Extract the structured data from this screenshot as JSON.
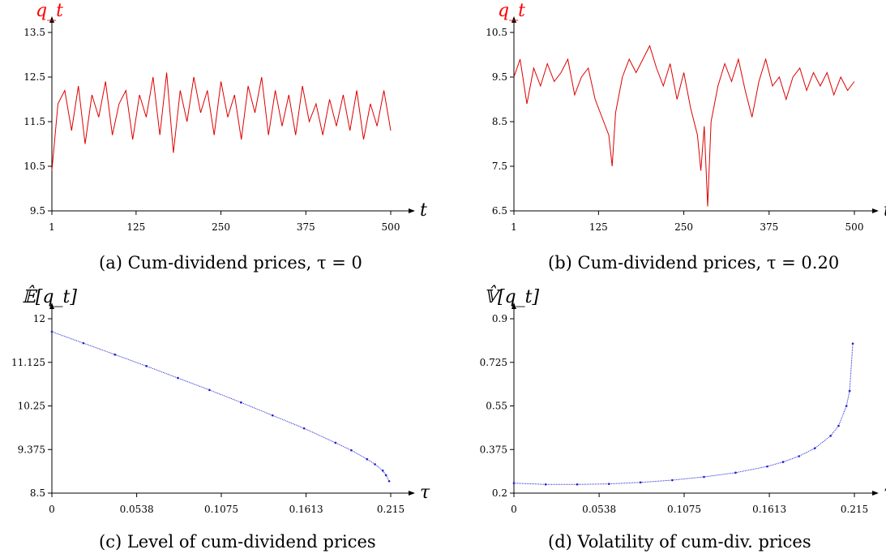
{
  "chart_data": [
    {
      "type": "line",
      "caption": "(a)  Cum-dividend prices, τ = 0",
      "ylabel": "q_t",
      "ylabel_color": "#ff0000",
      "xlabel": "t",
      "xticks": [
        "1",
        "125",
        "250",
        "375",
        "500"
      ],
      "xtick_values": [
        1,
        125,
        250,
        375,
        500
      ],
      "yticks": [
        "9.5",
        "10.5",
        "11.5",
        "12.5",
        "13.5"
      ],
      "ytick_values": [
        9.5,
        10.5,
        11.5,
        12.5,
        13.5
      ],
      "xlim": [
        1,
        500
      ],
      "ylim": [
        9.5,
        13.5
      ],
      "series_color": "#dd0000",
      "series": [
        {
          "x": [
            1,
            10,
            20,
            30,
            40,
            50,
            60,
            70,
            80,
            90,
            100,
            110,
            120,
            130,
            140,
            150,
            160,
            170,
            180,
            190,
            200,
            210,
            220,
            230,
            240,
            250,
            260,
            270,
            280,
            290,
            300,
            310,
            320,
            330,
            340,
            350,
            360,
            370,
            380,
            390,
            400,
            410,
            420,
            430,
            440,
            450,
            460,
            470,
            480,
            490,
            500
          ],
          "values": [
            10.4,
            11.9,
            12.2,
            11.3,
            12.3,
            11.0,
            12.1,
            11.6,
            12.4,
            11.2,
            11.9,
            12.2,
            11.1,
            12.1,
            11.6,
            12.5,
            11.2,
            12.6,
            10.8,
            12.2,
            11.5,
            12.5,
            11.7,
            12.2,
            11.2,
            12.4,
            11.6,
            12.1,
            11.1,
            12.3,
            11.7,
            12.5,
            11.2,
            12.2,
            11.4,
            12.1,
            11.2,
            12.3,
            11.5,
            11.9,
            11.2,
            12.0,
            11.4,
            12.1,
            11.3,
            12.2,
            11.1,
            11.9,
            11.4,
            12.2,
            11.3
          ]
        }
      ]
    },
    {
      "type": "line",
      "caption": "(b)  Cum-dividend prices, τ = 0.20",
      "ylabel": "q_t",
      "ylabel_color": "#ff0000",
      "xlabel": "t",
      "xticks": [
        "1",
        "125",
        "250",
        "375",
        "500"
      ],
      "xtick_values": [
        1,
        125,
        250,
        375,
        500
      ],
      "yticks": [
        "6.5",
        "7.5",
        "8.5",
        "9.5",
        "10.5"
      ],
      "ytick_values": [
        6.5,
        7.5,
        8.5,
        9.5,
        10.5
      ],
      "xlim": [
        1,
        500
      ],
      "ylim": [
        6.5,
        10.5
      ],
      "series_color": "#dd0000",
      "series": [
        {
          "x": [
            1,
            10,
            20,
            30,
            40,
            50,
            60,
            70,
            80,
            90,
            100,
            110,
            120,
            130,
            140,
            145,
            150,
            160,
            170,
            180,
            190,
            200,
            210,
            220,
            230,
            240,
            250,
            260,
            270,
            275,
            280,
            285,
            290,
            300,
            310,
            320,
            330,
            340,
            350,
            360,
            370,
            380,
            390,
            400,
            410,
            420,
            430,
            440,
            450,
            460,
            470,
            480,
            490,
            500
          ],
          "values": [
            9.5,
            9.9,
            8.9,
            9.7,
            9.3,
            9.8,
            9.4,
            9.6,
            9.9,
            9.1,
            9.5,
            9.7,
            9.0,
            8.6,
            8.2,
            7.5,
            8.7,
            9.5,
            9.9,
            9.6,
            9.9,
            10.2,
            9.7,
            9.3,
            9.8,
            9.0,
            9.6,
            8.8,
            8.2,
            7.4,
            8.4,
            6.6,
            8.5,
            9.3,
            9.8,
            9.4,
            9.9,
            9.2,
            8.6,
            9.4,
            9.9,
            9.3,
            9.5,
            9.0,
            9.5,
            9.7,
            9.2,
            9.6,
            9.3,
            9.6,
            9.1,
            9.5,
            9.2,
            9.4
          ]
        }
      ]
    },
    {
      "type": "scatter",
      "caption": "(c)  Level of cum-dividend prices",
      "ylabel": "𝔼̂[q_t]",
      "ylabel_color": "#000000",
      "xlabel": "τ",
      "xticks": [
        "0",
        "0.0538",
        "0.1075",
        "0.1613",
        "0.215"
      ],
      "xtick_values": [
        0,
        0.0538,
        0.1075,
        0.1613,
        0.215
      ],
      "yticks": [
        "8.5",
        "9.375",
        "10.25",
        "11.125",
        "12"
      ],
      "ytick_values": [
        8.5,
        9.375,
        10.25,
        11.125,
        12
      ],
      "xlim": [
        0,
        0.215
      ],
      "ylim": [
        8.5,
        12
      ],
      "series_color": "#1f1fd0",
      "series": [
        {
          "x": [
            0,
            0.02,
            0.04,
            0.06,
            0.08,
            0.1,
            0.12,
            0.14,
            0.16,
            0.18,
            0.19,
            0.2,
            0.205,
            0.21,
            0.212,
            0.214
          ],
          "values": [
            11.74,
            11.51,
            11.28,
            11.05,
            10.81,
            10.57,
            10.32,
            10.06,
            9.8,
            9.51,
            9.36,
            9.18,
            9.08,
            8.95,
            8.86,
            8.74
          ]
        }
      ]
    },
    {
      "type": "scatter",
      "caption": "(d)  Volatility of cum-div. prices",
      "ylabel": "𝕍̂[q_t]",
      "ylabel_color": "#000000",
      "xlabel": "τ",
      "xticks": [
        "0",
        "0.0538",
        "0.1075",
        "0.1613",
        "0.215"
      ],
      "xtick_values": [
        0,
        0.0538,
        0.1075,
        0.1613,
        0.215
      ],
      "yticks": [
        "0.2",
        "0.375",
        "0.55",
        "0.725",
        "0.9"
      ],
      "ytick_values": [
        0.2,
        0.375,
        0.55,
        0.725,
        0.9
      ],
      "xlim": [
        0,
        0.215
      ],
      "ylim": [
        0.2,
        0.9
      ],
      "series_color": "#1f1fd0",
      "series": [
        {
          "x": [
            0,
            0.02,
            0.04,
            0.06,
            0.08,
            0.1,
            0.12,
            0.14,
            0.16,
            0.17,
            0.18,
            0.19,
            0.2,
            0.205,
            0.21,
            0.212,
            0.214
          ],
          "values": [
            0.24,
            0.235,
            0.235,
            0.237,
            0.243,
            0.252,
            0.265,
            0.282,
            0.307,
            0.325,
            0.348,
            0.38,
            0.43,
            0.47,
            0.55,
            0.61,
            0.8
          ]
        }
      ]
    }
  ]
}
